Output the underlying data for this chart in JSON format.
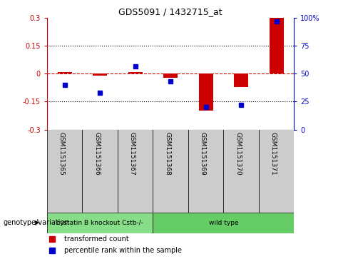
{
  "title": "GDS5091 / 1432715_at",
  "samples": [
    "GSM1151365",
    "GSM1151366",
    "GSM1151367",
    "GSM1151368",
    "GSM1151369",
    "GSM1151370",
    "GSM1151371"
  ],
  "transformed_count": [
    0.01,
    -0.01,
    0.01,
    -0.02,
    -0.2,
    -0.07,
    0.3
  ],
  "percentile_rank": [
    40,
    33,
    57,
    43,
    20,
    22,
    97
  ],
  "ylim": [
    -0.3,
    0.3
  ],
  "yticks": [
    -0.3,
    -0.15,
    0,
    0.15,
    0.3
  ],
  "right_yticks": [
    0,
    25,
    50,
    75,
    100
  ],
  "bar_color": "#cc0000",
  "dot_color": "#0000cc",
  "hline_color": "#cc0000",
  "grid_color": "#000000",
  "genotype_groups": [
    {
      "label": "cystatin B knockout Cstb-/-",
      "start": 0,
      "end": 3,
      "color": "#88dd88"
    },
    {
      "label": "wild type",
      "start": 3,
      "end": 7,
      "color": "#66cc66"
    }
  ],
  "legend_bar_label": "transformed count",
  "legend_dot_label": "percentile rank within the sample",
  "bar_width": 0.4,
  "tick_area_bg": "#cccccc",
  "genotype_label": "genotype/variation"
}
